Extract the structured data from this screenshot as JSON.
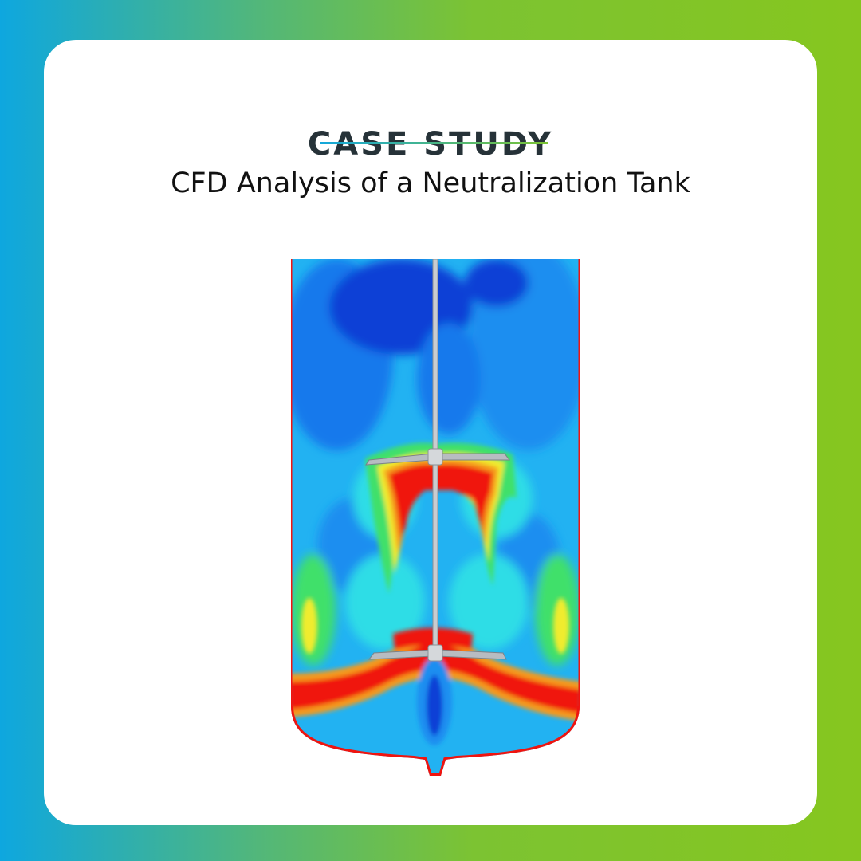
{
  "header": {
    "eyebrow": "CASE STUDY",
    "title": "CFD Analysis of a Neutralization Tank"
  },
  "figure": {
    "subject": "cfd-tank-velocity-contour",
    "colors": {
      "deep_blue": "#0a3fd6",
      "blue": "#1679ec",
      "light_blue": "#22b2f2",
      "cyan": "#2fdde6",
      "green": "#3fe06a",
      "yellow": "#f0ec2e",
      "orange": "#f59a1e",
      "red": "#f0140f",
      "impeller_gray": "#a8acb0"
    }
  },
  "theme": {
    "gradient_start": "#0ea7df",
    "gradient_end": "#86c61f",
    "text_dark": "#263238"
  }
}
